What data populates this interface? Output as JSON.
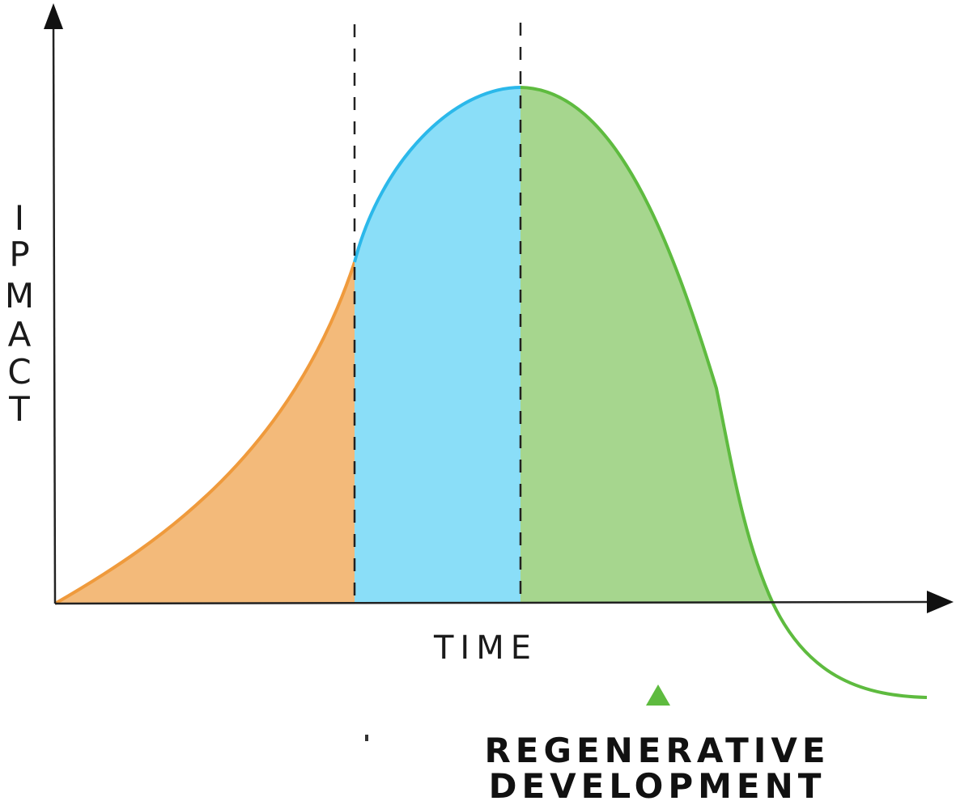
{
  "y_axis": {
    "letters": [
      "I",
      "P",
      "M",
      "A",
      "C",
      "T"
    ]
  },
  "x_axis": {
    "label": "TIME"
  },
  "annotation": {
    "line1": "REGENERATIVE",
    "line2": "DEVELOPMENT"
  },
  "colors": {
    "phase1_fill": "#f3ba7a",
    "phase1_stroke": "#ef9a3c",
    "phase2_fill": "#8adef8",
    "phase2_stroke": "#2bb8ea",
    "phase3_fill": "#a6d68e",
    "phase3_stroke": "#5ebb3f",
    "axis": "#222222",
    "marker": "#5ebb3f"
  },
  "icons": {
    "marker": "triangle-marker-icon",
    "y_arrow": "arrow-up-icon",
    "x_arrow": "arrow-right-icon"
  }
}
